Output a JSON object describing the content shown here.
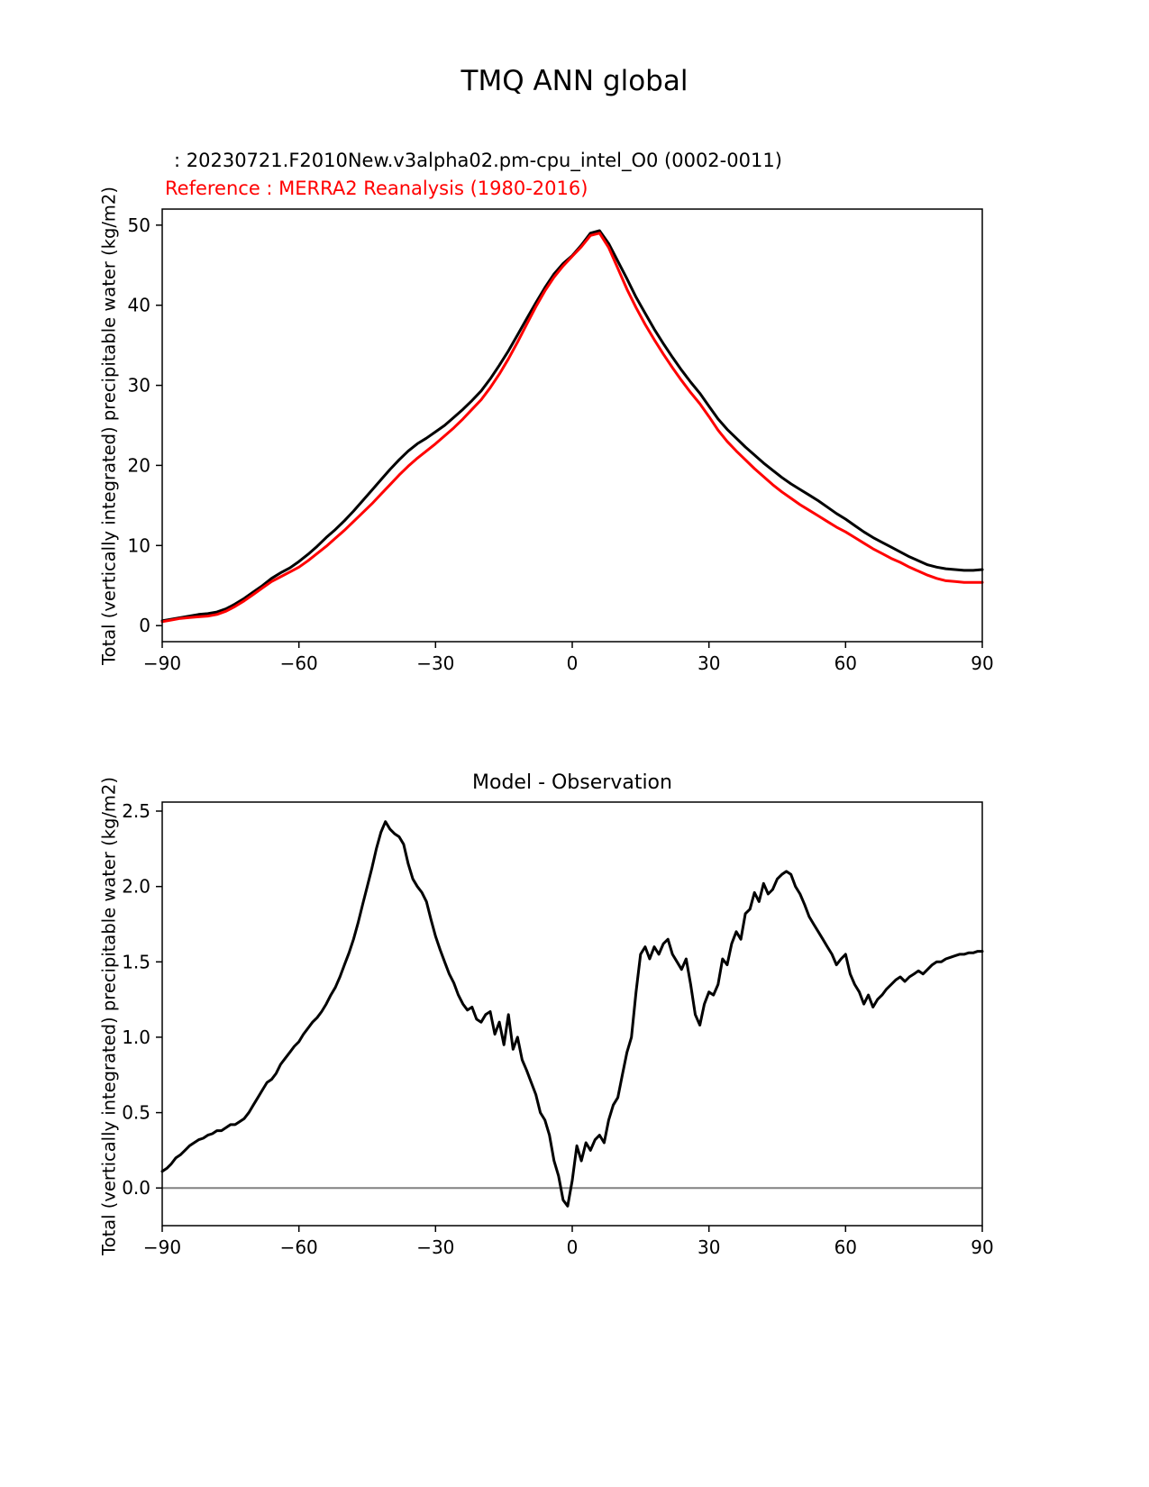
{
  "figure_title": "TMQ ANN global",
  "colors": {
    "model": "#000000",
    "reference": "#ff0000",
    "zero_line": "#808080",
    "axes": "#000000",
    "background": "#ffffff"
  },
  "chart_data": [
    {
      "type": "line",
      "panel": "top",
      "title": "TMQ ANN global",
      "ylabel": "Total (vertically integrated) precipitable water (kg/m2)",
      "xlabel": "",
      "grid": false,
      "legend_position": "above-left-as-titles",
      "xlim": [
        -90,
        90
      ],
      "ylim": [
        -2,
        52
      ],
      "xticks": [
        -90,
        -60,
        -30,
        0,
        30,
        60,
        90
      ],
      "xtick_labels": [
        "−90",
        "−60",
        "−30",
        "0",
        "30",
        "60",
        "90"
      ],
      "yticks": [
        0,
        10,
        20,
        30,
        40,
        50
      ],
      "ytick_labels": [
        "0",
        "10",
        "20",
        "30",
        "40",
        "50"
      ],
      "x_start": -90,
      "x_step": 2,
      "series": [
        {
          "name": "model",
          "label": ": 20230721.F2010New.v3alpha02.pm-cpu_intel_O0 (0002-0011)",
          "color": "#000000",
          "values": [
            0.6,
            0.8,
            1.0,
            1.2,
            1.4,
            1.5,
            1.7,
            2.1,
            2.7,
            3.4,
            4.2,
            5.0,
            5.9,
            6.6,
            7.2,
            8.0,
            8.9,
            9.9,
            11.0,
            12.0,
            13.1,
            14.3,
            15.6,
            16.9,
            18.2,
            19.5,
            20.7,
            21.8,
            22.7,
            23.4,
            24.2,
            25.0,
            26.0,
            27.0,
            28.1,
            29.3,
            30.8,
            32.5,
            34.3,
            36.3,
            38.3,
            40.3,
            42.2,
            43.9,
            45.2,
            46.2,
            47.5,
            49.0,
            49.3,
            47.7,
            45.5,
            43.3,
            41.0,
            39.0,
            37.0,
            35.2,
            33.5,
            31.9,
            30.4,
            29.0,
            27.4,
            25.8,
            24.5,
            23.4,
            22.3,
            21.3,
            20.3,
            19.4,
            18.5,
            17.7,
            17.0,
            16.3,
            15.6,
            14.8,
            14.0,
            13.3,
            12.5,
            11.7,
            11.0,
            10.4,
            9.8,
            9.2,
            8.6,
            8.1,
            7.6,
            7.3,
            7.1,
            7.0,
            6.9,
            6.9,
            7.0
          ]
        },
        {
          "name": "reference",
          "label": "Reference : MERRA2 Reanalysis (1980-2016)",
          "color": "#ff0000",
          "values": [
            0.5,
            0.7,
            0.9,
            1.0,
            1.1,
            1.2,
            1.4,
            1.8,
            2.4,
            3.1,
            3.9,
            4.7,
            5.5,
            6.1,
            6.7,
            7.3,
            8.1,
            9.0,
            9.9,
            10.9,
            11.9,
            13.0,
            14.1,
            15.2,
            16.4,
            17.6,
            18.8,
            19.9,
            20.9,
            21.8,
            22.7,
            23.7,
            24.7,
            25.8,
            27.0,
            28.2,
            29.7,
            31.4,
            33.3,
            35.4,
            37.6,
            39.8,
            41.8,
            43.5,
            44.9,
            46.1,
            47.3,
            48.7,
            49.0,
            47.2,
            44.6,
            42.0,
            39.7,
            37.6,
            35.7,
            33.9,
            32.2,
            30.6,
            29.1,
            27.7,
            26.1,
            24.4,
            23.0,
            21.8,
            20.7,
            19.6,
            18.6,
            17.6,
            16.7,
            15.9,
            15.1,
            14.4,
            13.7,
            13.0,
            12.3,
            11.7,
            11.0,
            10.3,
            9.6,
            9.0,
            8.4,
            7.9,
            7.3,
            6.8,
            6.3,
            5.9,
            5.6,
            5.5,
            5.4,
            5.4,
            5.4
          ]
        }
      ]
    },
    {
      "type": "line",
      "panel": "bottom",
      "title": "Model - Observation",
      "ylabel": "Total (vertically integrated) precipitable water (kg/m2)",
      "xlabel": "",
      "grid": false,
      "xlim": [
        -90,
        90
      ],
      "ylim": [
        -0.25,
        2.56
      ],
      "xticks": [
        -90,
        -60,
        -30,
        0,
        30,
        60,
        90
      ],
      "xtick_labels": [
        "−90",
        "−60",
        "−30",
        "0",
        "30",
        "60",
        "90"
      ],
      "yticks": [
        0,
        0.5,
        1,
        1.5,
        2,
        2.5
      ],
      "ytick_labels": [
        "0.0",
        "0.5",
        "1.0",
        "1.5",
        "2.0",
        "2.5"
      ],
      "x_start": -90,
      "x_step": 1,
      "zero_line": {
        "y": 0.0,
        "color": "#808080"
      },
      "series": [
        {
          "name": "difference",
          "label": "Model - Observation",
          "color": "#000000",
          "values": [
            0.11,
            0.13,
            0.16,
            0.2,
            0.22,
            0.25,
            0.28,
            0.3,
            0.32,
            0.33,
            0.35,
            0.36,
            0.38,
            0.38,
            0.4,
            0.42,
            0.42,
            0.44,
            0.46,
            0.5,
            0.55,
            0.6,
            0.65,
            0.7,
            0.72,
            0.76,
            0.82,
            0.86,
            0.9,
            0.94,
            0.97,
            1.02,
            1.06,
            1.1,
            1.13,
            1.17,
            1.22,
            1.28,
            1.33,
            1.4,
            1.48,
            1.56,
            1.65,
            1.76,
            1.88,
            2.0,
            2.12,
            2.25,
            2.36,
            2.43,
            2.38,
            2.35,
            2.33,
            2.28,
            2.15,
            2.05,
            2.0,
            1.96,
            1.9,
            1.78,
            1.67,
            1.58,
            1.5,
            1.42,
            1.36,
            1.28,
            1.22,
            1.18,
            1.2,
            1.12,
            1.1,
            1.15,
            1.17,
            1.02,
            1.1,
            0.95,
            1.15,
            0.92,
            1.0,
            0.85,
            0.78,
            0.7,
            0.62,
            0.5,
            0.45,
            0.35,
            0.18,
            0.08,
            -0.08,
            -0.12,
            0.05,
            0.28,
            0.18,
            0.3,
            0.25,
            0.32,
            0.35,
            0.3,
            0.45,
            0.55,
            0.6,
            0.75,
            0.9,
            1.0,
            1.3,
            1.55,
            1.6,
            1.52,
            1.6,
            1.55,
            1.62,
            1.65,
            1.55,
            1.5,
            1.45,
            1.52,
            1.35,
            1.15,
            1.08,
            1.22,
            1.3,
            1.28,
            1.35,
            1.52,
            1.48,
            1.62,
            1.7,
            1.65,
            1.82,
            1.85,
            1.96,
            1.9,
            2.02,
            1.95,
            1.98,
            2.05,
            2.08,
            2.1,
            2.08,
            2.0,
            1.95,
            1.88,
            1.8,
            1.75,
            1.7,
            1.65,
            1.6,
            1.55,
            1.48,
            1.52,
            1.55,
            1.42,
            1.35,
            1.3,
            1.22,
            1.28,
            1.2,
            1.25,
            1.28,
            1.32,
            1.35,
            1.38,
            1.4,
            1.37,
            1.4,
            1.42,
            1.44,
            1.42,
            1.45,
            1.48,
            1.5,
            1.5,
            1.52,
            1.53,
            1.54,
            1.55,
            1.55,
            1.56,
            1.56,
            1.57,
            1.57
          ]
        }
      ]
    }
  ]
}
